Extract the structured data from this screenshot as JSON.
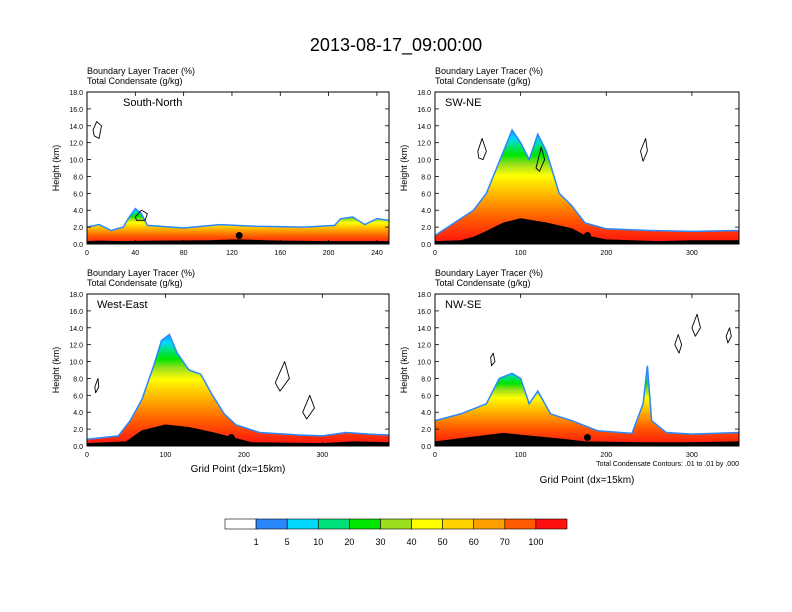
{
  "figure_title": "2013-08-17_09:00:00",
  "colorbar": {
    "colors": [
      "#ffffff",
      "#2a88ff",
      "#00d8ff",
      "#00e07a",
      "#00e600",
      "#9bde1e",
      "#ffff00",
      "#ffd200",
      "#ff9e00",
      "#ff5a00",
      "#ff1010"
    ],
    "labels": [
      "1",
      "5",
      "10",
      "20",
      "30",
      "40",
      "50",
      "60",
      "70",
      "100"
    ]
  },
  "chart_data": [
    {
      "type": "heatmap",
      "panel": "top-left",
      "title": "South-North",
      "header_line1": "Boundary Layer Tracer   (%)",
      "header_line2": "Total Condensate   (g/kg)",
      "ylabel": "Height (km)",
      "xlabel": "",
      "footnote": "",
      "ylim": [
        0,
        18
      ],
      "xlim": [
        0,
        250
      ],
      "yticks": [
        "0.0",
        "2.0",
        "4.0",
        "6.0",
        "8.0",
        "10.0",
        "12.0",
        "14.0",
        "16.0",
        "18.0"
      ],
      "xticks": [
        {
          "v": 0,
          "label": "0"
        },
        {
          "v": 40,
          "label": "40"
        },
        {
          "v": 80,
          "label": "80"
        },
        {
          "v": 120,
          "label": "120"
        },
        {
          "v": 160,
          "label": "160"
        },
        {
          "v": 200,
          "label": "200"
        },
        {
          "v": 240,
          "label": "240"
        }
      ],
      "terrain": [
        [
          0,
          0.3
        ],
        [
          10,
          0.35
        ],
        [
          30,
          0.3
        ],
        [
          60,
          0.35
        ],
        [
          100,
          0.4
        ],
        [
          125,
          0.5
        ],
        [
          160,
          0.35
        ],
        [
          200,
          0.3
        ],
        [
          250,
          0.3
        ]
      ],
      "tracer_top": [
        [
          0,
          2.0
        ],
        [
          10,
          2.3
        ],
        [
          20,
          1.6
        ],
        [
          30,
          2.0
        ],
        [
          35,
          3.2
        ],
        [
          40,
          4.2
        ],
        [
          45,
          3.6
        ],
        [
          50,
          2.2
        ],
        [
          80,
          1.9
        ],
        [
          110,
          2.3
        ],
        [
          140,
          2.1
        ],
        [
          180,
          2.0
        ],
        [
          205,
          2.2
        ],
        [
          210,
          3.0
        ],
        [
          220,
          3.2
        ],
        [
          230,
          2.3
        ],
        [
          240,
          3.0
        ],
        [
          250,
          2.8
        ]
      ],
      "dot": [
        126,
        1.0
      ],
      "contours": [
        [
          [
            5,
            13.5
          ],
          [
            8,
            14.5
          ],
          [
            12,
            14
          ],
          [
            10,
            12.5
          ],
          [
            6,
            12.8
          ]
        ],
        [
          [
            40,
            3.2
          ],
          [
            45,
            4.0
          ],
          [
            50,
            3.6
          ],
          [
            48,
            2.8
          ],
          [
            41,
            2.8
          ]
        ]
      ]
    },
    {
      "type": "heatmap",
      "panel": "top-right",
      "title": "SW-NE",
      "header_line1": "Boundary Layer Tracer   (%)",
      "header_line2": "Total Condensate   (g/kg)",
      "ylabel": "Height (km)",
      "xlabel": "",
      "footnote": "",
      "ylim": [
        0,
        18
      ],
      "xlim": [
        0,
        355
      ],
      "yticks": [
        "0.0",
        "2.0",
        "4.0",
        "6.0",
        "8.0",
        "10.0",
        "12.0",
        "14.0",
        "16.0",
        "18.0"
      ],
      "xticks": [
        {
          "v": 0,
          "label": "0"
        },
        {
          "v": 100,
          "label": "100"
        },
        {
          "v": 200,
          "label": "200"
        },
        {
          "v": 300,
          "label": "300"
        }
      ],
      "terrain": [
        [
          0,
          0.3
        ],
        [
          30,
          0.4
        ],
        [
          45,
          0.8
        ],
        [
          60,
          1.5
        ],
        [
          80,
          2.5
        ],
        [
          100,
          3.0
        ],
        [
          130,
          2.5
        ],
        [
          160,
          1.8
        ],
        [
          175,
          1.0
        ],
        [
          200,
          0.5
        ],
        [
          260,
          0.3
        ],
        [
          300,
          0.4
        ],
        [
          355,
          0.4
        ]
      ],
      "tracer_top": [
        [
          0,
          1.0
        ],
        [
          15,
          2.0
        ],
        [
          30,
          3.0
        ],
        [
          45,
          4.0
        ],
        [
          60,
          6.0
        ],
        [
          70,
          8.5
        ],
        [
          80,
          11.0
        ],
        [
          90,
          13.5
        ],
        [
          100,
          12.0
        ],
        [
          110,
          10.0
        ],
        [
          120,
          13.0
        ],
        [
          130,
          11.0
        ],
        [
          145,
          6.0
        ],
        [
          160,
          4.5
        ],
        [
          175,
          2.5
        ],
        [
          200,
          1.8
        ],
        [
          250,
          1.6
        ],
        [
          300,
          1.5
        ],
        [
          355,
          1.6
        ]
      ],
      "dot": [
        178,
        1.0
      ],
      "contours": [
        [
          [
            50,
            11
          ],
          [
            55,
            12.5
          ],
          [
            60,
            11
          ],
          [
            56,
            10
          ],
          [
            51,
            10.2
          ]
        ],
        [
          [
            118,
            9
          ],
          [
            124,
            11.5
          ],
          [
            128,
            10
          ],
          [
            122,
            8.6
          ]
        ],
        [
          [
            240,
            11
          ],
          [
            246,
            12.5
          ],
          [
            248,
            11
          ],
          [
            243,
            9.8
          ]
        ]
      ]
    },
    {
      "type": "heatmap",
      "panel": "bottom-left",
      "title": "West-East",
      "header_line1": "Boundary Layer Tracer   (%)",
      "header_line2": "Total Condensate   (g/kg)",
      "ylabel": "Height (km)",
      "xlabel": "Grid Point (dx=15km)",
      "footnote": "",
      "ylim": [
        0,
        18
      ],
      "xlim": [
        0,
        385
      ],
      "yticks": [
        "0.0",
        "2.0",
        "4.0",
        "6.0",
        "8.0",
        "10.0",
        "12.0",
        "14.0",
        "16.0",
        "18.0"
      ],
      "xticks": [
        {
          "v": 0,
          "label": "0"
        },
        {
          "v": 100,
          "label": "100"
        },
        {
          "v": 200,
          "label": "200"
        },
        {
          "v": 300,
          "label": "300"
        }
      ],
      "terrain": [
        [
          0,
          0.3
        ],
        [
          50,
          0.5
        ],
        [
          70,
          1.8
        ],
        [
          100,
          2.5
        ],
        [
          130,
          2.2
        ],
        [
          160,
          1.6
        ],
        [
          185,
          1.0
        ],
        [
          210,
          0.4
        ],
        [
          300,
          0.3
        ],
        [
          340,
          0.5
        ],
        [
          385,
          0.4
        ]
      ],
      "tracer_top": [
        [
          0,
          0.8
        ],
        [
          40,
          1.2
        ],
        [
          55,
          3.0
        ],
        [
          70,
          5.5
        ],
        [
          85,
          9.5
        ],
        [
          95,
          12.5
        ],
        [
          105,
          13.2
        ],
        [
          115,
          11.0
        ],
        [
          130,
          9.0
        ],
        [
          145,
          8.5
        ],
        [
          160,
          6.0
        ],
        [
          175,
          3.8
        ],
        [
          190,
          2.5
        ],
        [
          220,
          1.6
        ],
        [
          270,
          1.3
        ],
        [
          300,
          1.2
        ],
        [
          330,
          1.6
        ],
        [
          360,
          1.4
        ],
        [
          385,
          1.3
        ]
      ],
      "dot": [
        184,
        1.0
      ],
      "contours": [
        [
          [
            10,
            7
          ],
          [
            14,
            8
          ],
          [
            15,
            7
          ],
          [
            11,
            6.3
          ]
        ],
        [
          [
            240,
            7.5
          ],
          [
            252,
            10
          ],
          [
            258,
            8
          ],
          [
            246,
            6.5
          ]
        ],
        [
          [
            275,
            4
          ],
          [
            284,
            6
          ],
          [
            290,
            4.5
          ],
          [
            280,
            3.2
          ]
        ]
      ]
    },
    {
      "type": "heatmap",
      "panel": "bottom-right",
      "title": "NW-SE",
      "header_line1": "Boundary Layer Tracer   (%)",
      "header_line2": "Total Condensate   (g/kg)",
      "ylabel": "Height (km)",
      "xlabel": "Grid Point (dx=15km)",
      "footnote": "Total Condensate Contours: .01 to .01 by .000",
      "ylim": [
        0,
        18
      ],
      "xlim": [
        0,
        355
      ],
      "yticks": [
        "0.0",
        "2.0",
        "4.0",
        "6.0",
        "8.0",
        "10.0",
        "12.0",
        "14.0",
        "16.0",
        "18.0"
      ],
      "xticks": [
        {
          "v": 0,
          "label": "0"
        },
        {
          "v": 100,
          "label": "100"
        },
        {
          "v": 200,
          "label": "200"
        },
        {
          "v": 300,
          "label": "300"
        }
      ],
      "terrain": [
        [
          0,
          0.5
        ],
        [
          40,
          1.0
        ],
        [
          80,
          1.5
        ],
        [
          110,
          1.2
        ],
        [
          150,
          0.8
        ],
        [
          175,
          0.5
        ],
        [
          240,
          0.4
        ],
        [
          300,
          0.4
        ],
        [
          355,
          0.5
        ]
      ],
      "tracer_top": [
        [
          0,
          3.0
        ],
        [
          30,
          3.8
        ],
        [
          60,
          5.0
        ],
        [
          75,
          8.0
        ],
        [
          90,
          8.6
        ],
        [
          100,
          8.0
        ],
        [
          110,
          5.0
        ],
        [
          120,
          6.5
        ],
        [
          135,
          3.8
        ],
        [
          160,
          3.0
        ],
        [
          190,
          1.8
        ],
        [
          230,
          1.5
        ],
        [
          243,
          5.0
        ],
        [
          248,
          9.5
        ],
        [
          253,
          3.0
        ],
        [
          270,
          1.6
        ],
        [
          300,
          1.4
        ],
        [
          355,
          1.6
        ]
      ],
      "dot": [
        178,
        1.0
      ],
      "contours": [
        [
          [
            65,
            10.5
          ],
          [
            68,
            11
          ],
          [
            70,
            10
          ],
          [
            66,
            9.5
          ]
        ],
        [
          [
            280,
            12
          ],
          [
            284,
            13.2
          ],
          [
            288,
            12
          ],
          [
            285,
            11
          ]
        ],
        [
          [
            300,
            14
          ],
          [
            306,
            15.6
          ],
          [
            310,
            14
          ],
          [
            304,
            13
          ]
        ],
        [
          [
            340,
            13
          ],
          [
            344,
            14
          ],
          [
            346,
            13
          ],
          [
            342,
            12.2
          ]
        ]
      ]
    }
  ]
}
